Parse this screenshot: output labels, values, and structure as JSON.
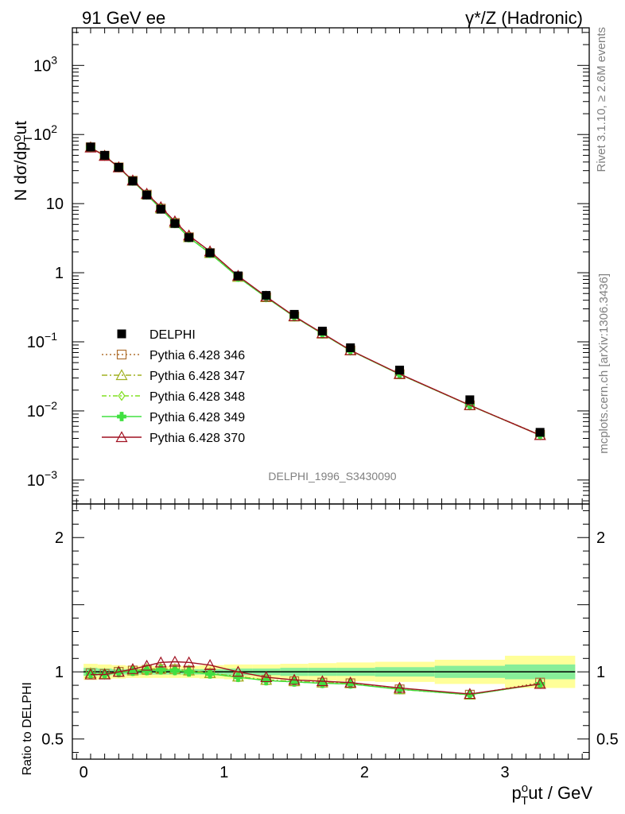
{
  "header": {
    "left": "91 GeV ee",
    "right": "γ*/Z (Hadronic)"
  },
  "side": {
    "rivet": "Rivet 3.1.10, ≥ 2.6M events",
    "mcplots": "mcplots.cern.ch [arXiv:1306.3436]"
  },
  "analysis_label": "DELPHI_1996_S3430090",
  "chart_data": {
    "type": "line",
    "x_axis": {
      "label": "p_T^out / GeV",
      "range": [
        -0.08,
        3.6
      ],
      "ticks": [
        "0",
        "1",
        "2",
        "3"
      ]
    },
    "main_y_axis": {
      "label": "N dσ/dp_T^out",
      "scale": "log",
      "range": [
        0.00045,
        3500
      ],
      "ticks": [
        "10^-3",
        "10^-2",
        "10^-1",
        "1",
        "10",
        "10^2",
        "10^3"
      ]
    },
    "ratio_y_axis": {
      "label": "Ratio to DELPHI",
      "range": [
        0.35,
        2.25
      ],
      "ticks": [
        "0.5",
        "1",
        "2"
      ]
    },
    "x": [
      0.05,
      0.15,
      0.25,
      0.35,
      0.45,
      0.55,
      0.65,
      0.75,
      0.9,
      1.1,
      1.3,
      1.5,
      1.7,
      1.9,
      2.25,
      2.75,
      3.25
    ],
    "data": {
      "name": "DELPHI",
      "values": [
        66,
        50,
        33.5,
        21.2,
        13.3,
        8.3,
        5.15,
        3.23,
        1.94,
        0.9,
        0.47,
        0.25,
        0.143,
        0.082,
        0.039,
        0.0145,
        0.0049
      ],
      "err_inner": [
        0.03,
        0.025,
        0.02,
        0.02,
        0.02,
        0.02,
        0.02,
        0.02,
        0.02,
        0.025,
        0.025,
        0.03,
        0.03,
        0.03,
        0.035,
        0.045,
        0.055
      ],
      "err_outer": [
        0.06,
        0.055,
        0.05,
        0.045,
        0.045,
        0.045,
        0.045,
        0.045,
        0.05,
        0.055,
        0.055,
        0.06,
        0.065,
        0.07,
        0.075,
        0.09,
        0.12
      ]
    },
    "series": [
      {
        "name": "Pythia 6.428 346",
        "color": "#b07030",
        "dash": "2,3",
        "marker": "square",
        "ratio": [
          0.99,
          0.985,
          1.0,
          1.01,
          1.015,
          1.02,
          1.02,
          1.01,
          0.99,
          0.965,
          0.94,
          0.93,
          0.92,
          0.915,
          0.87,
          0.83,
          0.92
        ]
      },
      {
        "name": "Pythia 6.428 347",
        "color": "#a0b020",
        "dash": "7,3,2,3",
        "marker": "triangle",
        "ratio": [
          0.99,
          0.985,
          1.0,
          1.01,
          1.02,
          1.025,
          1.02,
          1.01,
          0.99,
          0.965,
          0.94,
          0.93,
          0.92,
          0.915,
          0.87,
          0.83,
          0.91
        ]
      },
      {
        "name": "Pythia 6.428 348",
        "color": "#80e020",
        "dash": "6,3,2,3",
        "marker": "diamond",
        "ratio": [
          0.985,
          0.98,
          0.995,
          1.005,
          1.01,
          1.015,
          1.01,
          1.0,
          0.985,
          0.96,
          0.935,
          0.925,
          0.915,
          0.91,
          0.87,
          0.83,
          0.91
        ]
      },
      {
        "name": "Pythia 6.428 349",
        "color": "#40e040",
        "dash": "",
        "marker": "cross",
        "ratio": [
          0.985,
          0.98,
          0.995,
          1.005,
          1.01,
          1.015,
          1.01,
          1.0,
          0.985,
          0.96,
          0.935,
          0.925,
          0.915,
          0.91,
          0.87,
          0.83,
          0.91
        ]
      },
      {
        "name": "Pythia 6.428 370",
        "color": "#a01020",
        "dash": "",
        "marker": "triangle",
        "ratio": [
          0.98,
          0.98,
          1.0,
          1.02,
          1.045,
          1.07,
          1.075,
          1.07,
          1.05,
          1.0,
          0.96,
          0.94,
          0.93,
          0.92,
          0.88,
          0.835,
          0.91
        ]
      }
    ]
  }
}
